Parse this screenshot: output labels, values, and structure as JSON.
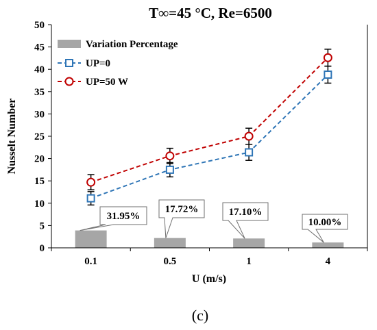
{
  "chart_data": {
    "type": "bar+line",
    "title": "T∞=45 °C, Re=6500",
    "xlabel": "U (m/s)",
    "ylabel": "Nusselt Number",
    "categories": [
      "0.1",
      "0.5",
      "1",
      "4"
    ],
    "ylim": [
      0,
      50
    ],
    "yticks": [
      0,
      5,
      10,
      15,
      20,
      25,
      30,
      35,
      40,
      45,
      50
    ],
    "grid": false,
    "legend_position": "top-left",
    "series": [
      {
        "name": "Variation Percentage",
        "kind": "bar",
        "color": "#a6a6a6",
        "values": [
          3.9,
          2.2,
          2.1,
          1.2
        ],
        "labels": [
          "31.95%",
          "17.72%",
          "17.10%",
          "10.00%"
        ]
      },
      {
        "name": "UP=0",
        "kind": "line",
        "marker": "square",
        "color": "#2e75b6",
        "values": [
          11.1,
          17.5,
          21.4,
          38.8
        ],
        "error": [
          1.5,
          1.6,
          1.8,
          1.9
        ]
      },
      {
        "name": "UP=50 W",
        "kind": "line",
        "marker": "circle",
        "color": "#c00000",
        "values": [
          14.7,
          20.6,
          25.0,
          42.6
        ],
        "error": [
          1.7,
          1.7,
          1.8,
          1.9
        ]
      }
    ]
  },
  "caption": "(c)"
}
